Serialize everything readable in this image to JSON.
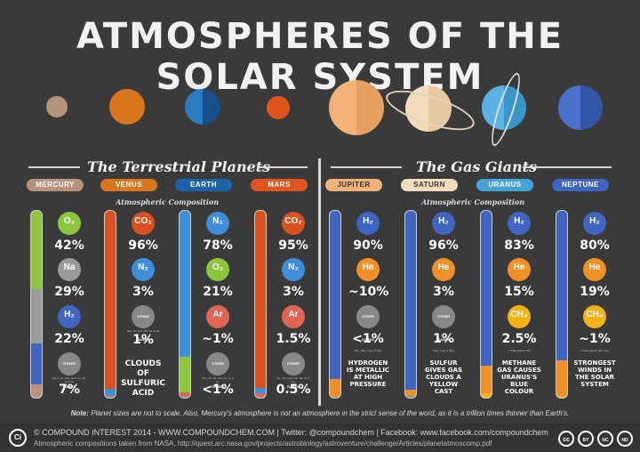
{
  "title": "ATMOSPHERES OF THE SOLAR SYSTEM",
  "terrestrial_heading": "The Terrestrial Planets",
  "gas_heading": "The Gas Giants",
  "composition_label": "Atmospheric Composition",
  "planets": {
    "mercury": {
      "name": "MERCURY",
      "color": "#b8937b"
    },
    "venus": {
      "name": "VENUS",
      "color": "#d9771e"
    },
    "earth": {
      "name": "EARTH",
      "color": "#1d62a8"
    },
    "mars": {
      "name": "MARS",
      "color": "#e0551e"
    },
    "jupiter": {
      "name": "JUPITER",
      "color": "#f2b277"
    },
    "saturn": {
      "name": "SATURN",
      "color": "#f3dcbc"
    },
    "uranus": {
      "name": "URANUS",
      "color": "#44a4d8"
    },
    "neptune": {
      "name": "NEPTUNE",
      "color": "#3f65c0"
    }
  },
  "mercury": {
    "o2": "42%",
    "na": "29%",
    "h2": "22%",
    "other": "7%",
    "o2_label": "O₂",
    "na_label": "Na",
    "h2_label": "H₂",
    "other_label": "OTHER GASES",
    "other_detail": "He, K, Ar, CO₂, H₂O, N₂, Xe, Kr & Ne"
  },
  "venus": {
    "co2": "96%",
    "n2": "3%",
    "other": "1%",
    "co2_label": "CO₂",
    "n2_label": "N₂",
    "other_label": "OTHER GASES",
    "other_detail": "SO₂, Ar, H₂O, CO, He & Ne",
    "note": "CLOUDS OF SULFURIC ACID"
  },
  "earth": {
    "n2": "78%",
    "o2": "21%",
    "ar": "~1%",
    "other": "<1%",
    "n2_label": "N₂",
    "o2_label": "O₂",
    "ar_label": "Ar",
    "other_label": "OTHER GASES",
    "other_detail": "CO₂, Ne, He, CH₄, Kr, H₂ & Xe"
  },
  "mars": {
    "co2": "95%",
    "n2": "3%",
    "ar": "1.5%",
    "other": "0.5%",
    "co2_label": "CO₂",
    "n2_label": "N₂",
    "ar_label": "Ar",
    "other_label": "OTHER GASES",
    "other_detail": "O₂, CO, H₂O, NO, Ne, Kr & Xe"
  },
  "jupiter": {
    "h2": "90%",
    "he": "~10%",
    "other": "<1%",
    "h2_label": "H₂",
    "he_label": "He",
    "other_label": "OTHER GASES",
    "other_detail": "CH₄, NH₃, C₂H₆ & H₂O",
    "note": "HYDROGEN IS METALLIC AT HIGH PRESSURE"
  },
  "saturn": {
    "h2": "96%",
    "he": "3%",
    "other": "1%",
    "h2_label": "H₂",
    "he_label": "He",
    "other_label": "OTHER GASES",
    "other_detail": "CH₄, C₂H₆ & NH₃",
    "note": "SULFUR GIVES GAS CLOUDS A YELLOW CAST"
  },
  "uranus": {
    "h2": "83%",
    "he": "15%",
    "ch4": "2.5%",
    "h2_label": "H₂",
    "he_label": "He",
    "ch4_label": "CH₄",
    "trace": "+ Trace gases: HD",
    "note": "METHANE GAS CAUSES URANUS'S BLUE COLOUR"
  },
  "neptune": {
    "h2": "80%",
    "he": "19%",
    "ch4": "~1%",
    "h2_label": "H₂",
    "he_label": "He",
    "ch4_label": "CH₄",
    "trace": "+ Trace gases: HD, C₂H₆",
    "note": "STRONGEST WINDS IN THE SOLAR SYSTEM"
  },
  "note_label": "Note:",
  "note_text": "Planet sizes are not to scale. Also, Mercury's atmosphere is not an atmosphere in the strict sense of the word, as it is a trillion times thinner than Earth's.",
  "footer": {
    "line1": "© COMPOUND INTEREST 2014 - WWW.COMPOUNDCHEM.COM | Twitter: @compoundchem | Facebook: www.facebook.com/compoundchem",
    "line2": "Atmospheric compositions taken from NASA, http://quest.arc.nasa.gov/projects/astrobiology/astroventure/challenge/Articles/planetatmoscomp.pdf",
    "logo": "Ci",
    "cc": [
      "cc",
      "BY",
      "NC",
      "ND"
    ]
  },
  "colors": {
    "o2": "#d9771e",
    "na": "#9a9a9a",
    "h2": "#3f65c0",
    "n2": "#3f8fd8",
    "co2": "#d9511e",
    "ar": "#e06555",
    "he": "#f09028",
    "ch4": "#f3b216",
    "other": "#888888",
    "green": "#8cc63f"
  }
}
